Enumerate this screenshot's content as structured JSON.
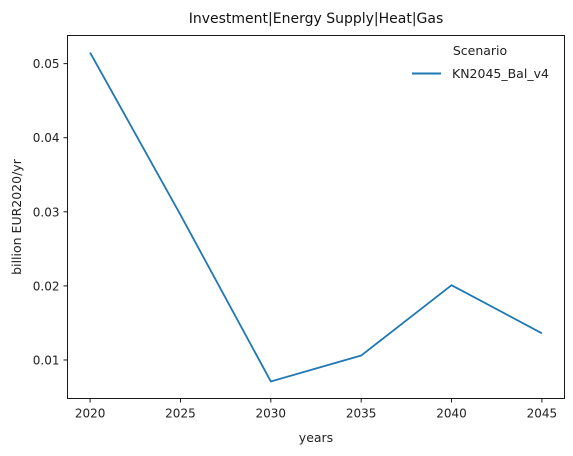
{
  "chart_data": {
    "type": "line",
    "title": "Investment|Energy Supply|Heat|Gas",
    "xlabel": "years",
    "ylabel": "billion EUR2020/yr",
    "x": [
      2020,
      2025,
      2030,
      2035,
      2040,
      2045
    ],
    "xticks": [
      "2020",
      "2025",
      "2030",
      "2035",
      "2040",
      "2045"
    ],
    "yticks": [
      "0.01",
      "0.02",
      "0.03",
      "0.04",
      "0.05"
    ],
    "xlim": [
      2018.75,
      2046.25
    ],
    "ylim": [
      0.0048,
      0.0538
    ],
    "grid": false,
    "legend": {
      "title": "Scenario",
      "placement": "top-right"
    },
    "series": [
      {
        "name": "KN2045_Bal_v4",
        "color": "#1f77b4",
        "values": [
          0.0515,
          0.0296,
          0.0071,
          0.0106,
          0.0201,
          0.0136
        ]
      }
    ]
  }
}
